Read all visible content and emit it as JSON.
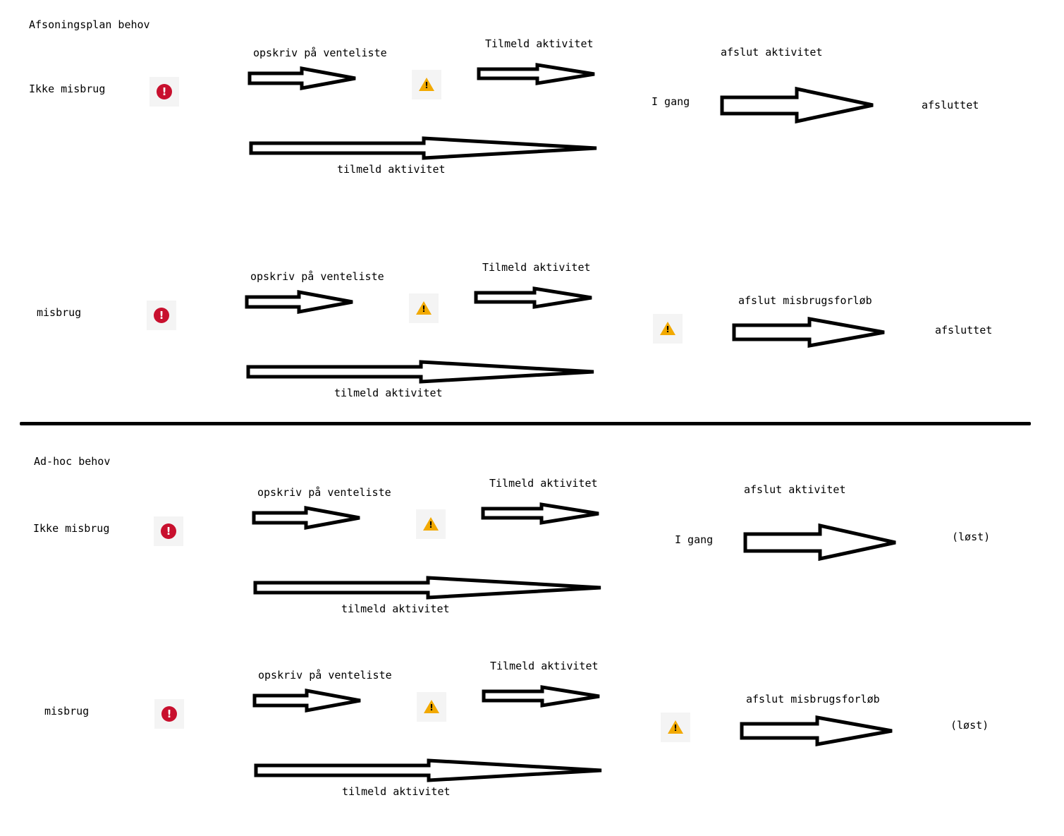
{
  "sections": {
    "afsoningsplan": {
      "title": "Afsoningsplan behov"
    },
    "adhoc": {
      "title": "Ad-hoc behov"
    }
  },
  "rows": {
    "r1": {
      "label": "Ikke misbrug",
      "opskriv": "opskriv på venteliste",
      "tilmeld_top": "Tilmeld aktivitet",
      "tilmeld_bottom": "tilmeld aktivitet",
      "state": "I gang",
      "action": "afslut aktivitet",
      "result": "afsluttet"
    },
    "r2": {
      "label": "misbrug",
      "opskriv": "opskriv på venteliste",
      "tilmeld_top": "Tilmeld aktivitet",
      "tilmeld_bottom": "tilmeld aktivitet",
      "action": "afslut misbrugsforløb",
      "result": "afsluttet"
    },
    "r3": {
      "label": "Ikke misbrug",
      "opskriv": "opskriv på venteliste",
      "tilmeld_top": "Tilmeld aktivitet",
      "tilmeld_bottom": "tilmeld aktivitet",
      "state": "I gang",
      "action": "afslut aktivitet",
      "result": "(løst)"
    },
    "r4": {
      "label": "misbrug",
      "opskriv": "opskriv på venteliste",
      "tilmeld_top": "Tilmeld aktivitet",
      "tilmeld_bottom": "tilmeld aktivitet",
      "action": "afslut misbrugsforløb",
      "result": "(løst)"
    }
  },
  "icons": {
    "error": {
      "name": "error-circle-icon",
      "glyph": "!",
      "color": "#c8102e"
    },
    "warning": {
      "name": "warning-triangle-icon",
      "glyph": "!",
      "color": "#f2a900"
    }
  }
}
